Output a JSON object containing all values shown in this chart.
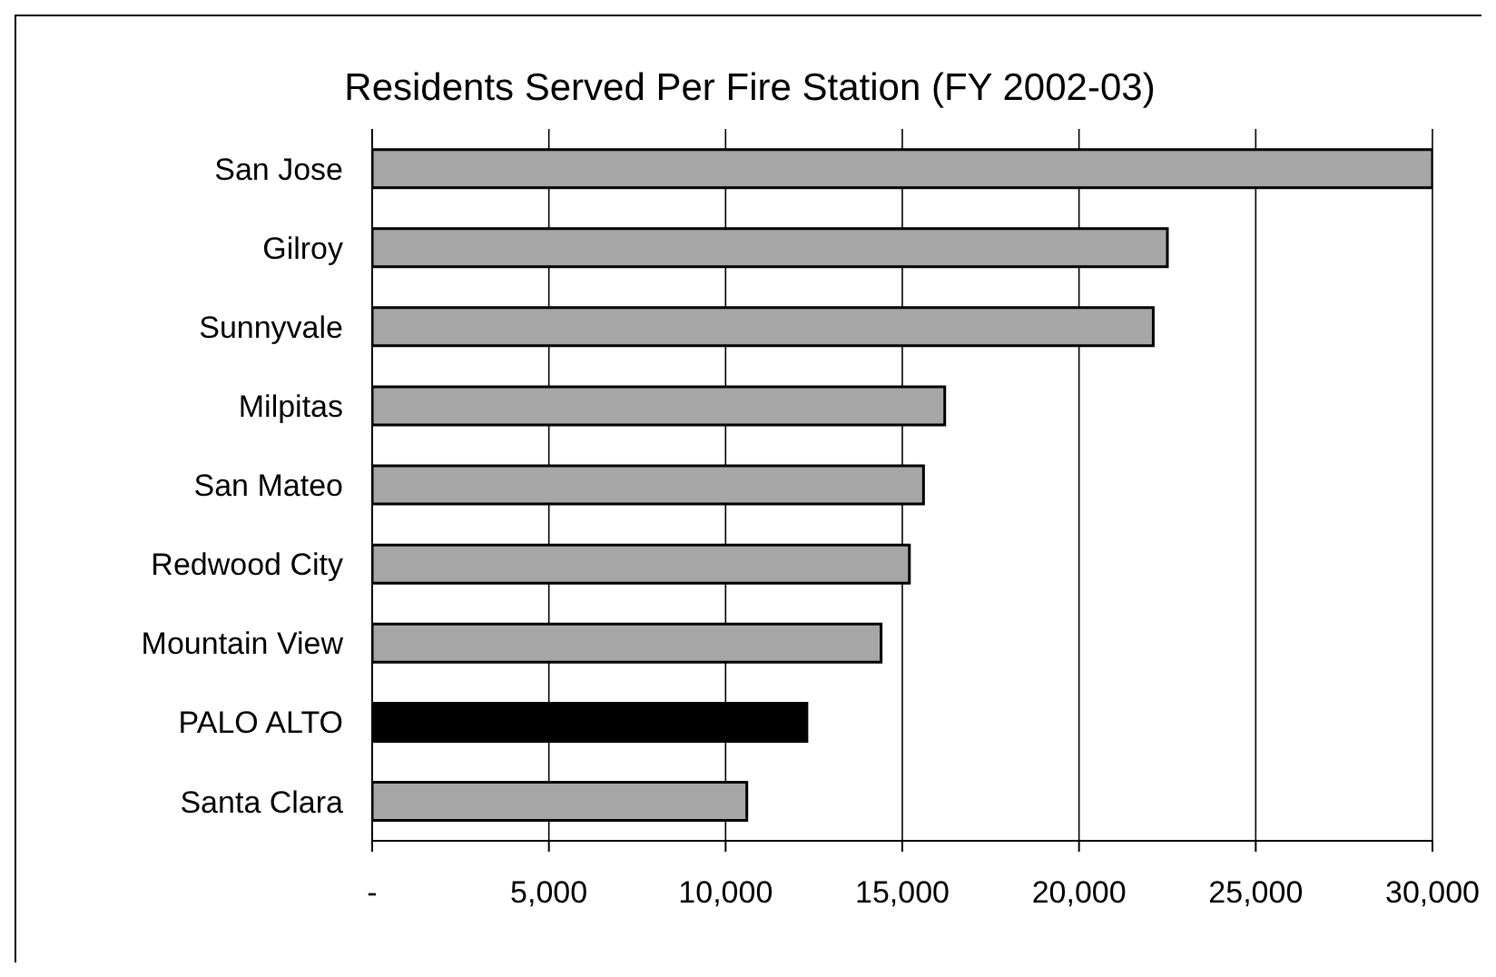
{
  "chart_data": {
    "type": "bar",
    "orientation": "horizontal",
    "title": "Residents Served Per Fire Station (FY 2002-03)",
    "categories": [
      "San Jose",
      "Gilroy",
      "Sunnyvale",
      "Milpitas",
      "San Mateo",
      "Redwood City",
      "Mountain View",
      "PALO ALTO",
      "Santa Clara"
    ],
    "values": [
      30000,
      22500,
      22100,
      16200,
      15600,
      15200,
      14400,
      12300,
      10600
    ],
    "colors": [
      "#a6a6a6",
      "#a6a6a6",
      "#a6a6a6",
      "#a6a6a6",
      "#a6a6a6",
      "#a6a6a6",
      "#a6a6a6",
      "#000000",
      "#a6a6a6"
    ],
    "xlim": [
      0,
      30000
    ],
    "xticks": [
      {
        "value": 0,
        "label": "-"
      },
      {
        "value": 5000,
        "label": "5,000"
      },
      {
        "value": 10000,
        "label": "10,000"
      },
      {
        "value": 15000,
        "label": "15,000"
      },
      {
        "value": 20000,
        "label": "20,000"
      },
      {
        "value": 25000,
        "label": "25,000"
      },
      {
        "value": 30000,
        "label": "30,000"
      }
    ],
    "grid": "x"
  }
}
